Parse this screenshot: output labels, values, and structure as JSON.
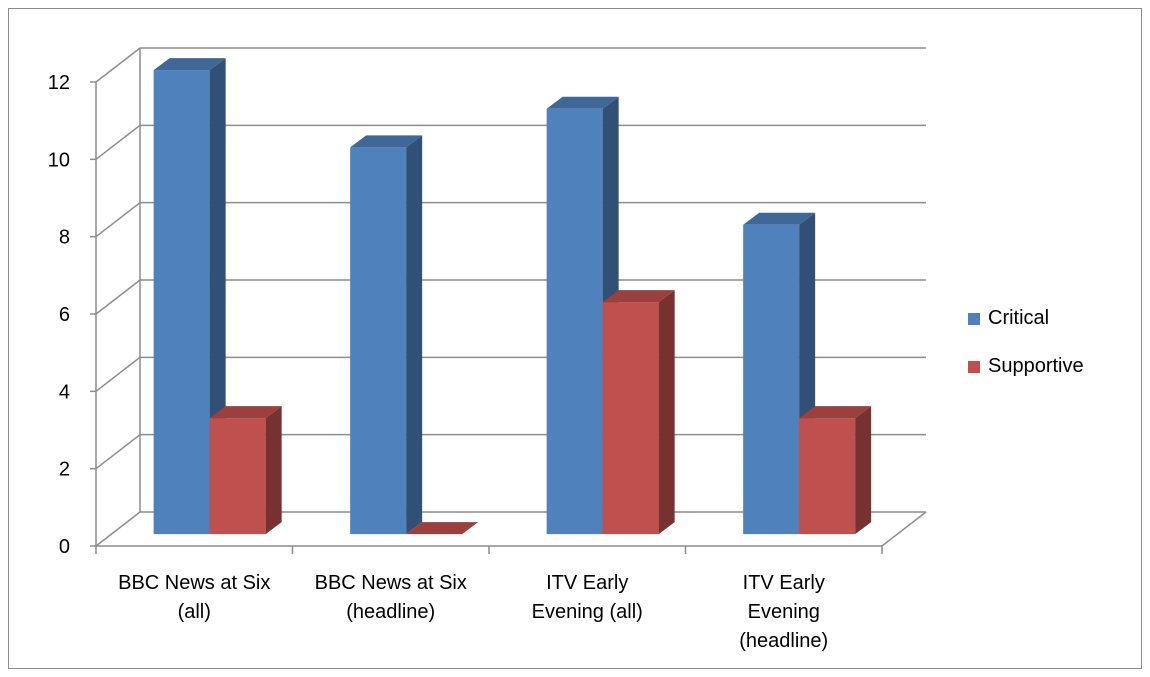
{
  "chart_data": {
    "type": "bar",
    "style": "3d-clustered-column",
    "categories": [
      [
        "BBC News at Six",
        "(all)"
      ],
      [
        "BBC News at Six",
        "(headline)"
      ],
      [
        "ITV Early",
        "Evening (all)"
      ],
      [
        "ITV Early",
        "Evening",
        "(headline)"
      ]
    ],
    "series": [
      {
        "name": "Critical",
        "values": [
          12,
          10,
          11,
          8
        ],
        "color": "#4f81bd"
      },
      {
        "name": "Supportive",
        "values": [
          3,
          0,
          6,
          3
        ],
        "color": "#c0504d"
      }
    ],
    "ylim": [
      0,
      12
    ],
    "yticks": [
      "0",
      "2",
      "4",
      "6",
      "8",
      "10",
      "12"
    ],
    "grid": true,
    "legend_position": "right"
  }
}
